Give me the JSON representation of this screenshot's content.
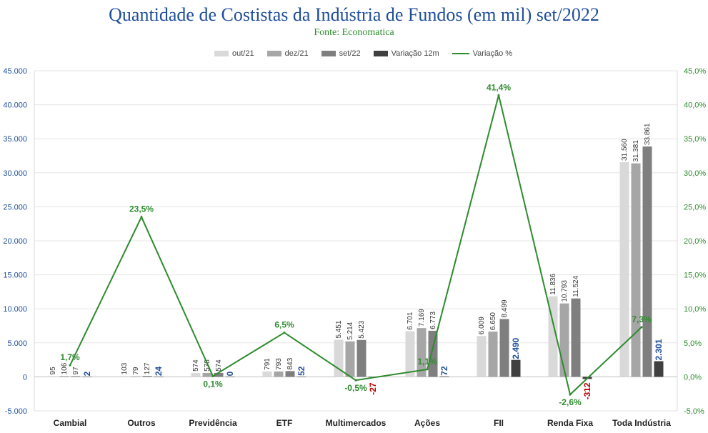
{
  "chart_data": {
    "type": "bar",
    "title": "Quantidade de Costistas da Indústria de Fundos (em mil) set/2022",
    "subtitle": "Fonte: Economatica",
    "categories": [
      "Cambial",
      "Outros",
      "Previdência",
      "ETF",
      "Multimercados",
      "Ações",
      "FII",
      "Renda Fixa",
      "Toda Indústria"
    ],
    "series": [
      {
        "name": "out/21",
        "type": "bar",
        "color": "#d9d9d9",
        "values": [
          95,
          103,
          574,
          791,
          5451,
          6701,
          6009,
          11836,
          31560
        ],
        "labels": [
          "95",
          "103",
          "574",
          "791",
          "5.451",
          "6.701",
          "6.009",
          "11.836",
          "31.560"
        ]
      },
      {
        "name": "dez/21",
        "type": "bar",
        "color": "#a6a6a6",
        "values": [
          106,
          79,
          578,
          793,
          5214,
          7169,
          6650,
          10793,
          31381
        ],
        "labels": [
          "106",
          "79",
          "578",
          "793",
          "5.214",
          "7.169",
          "6.650",
          "10.793",
          "31.381"
        ]
      },
      {
        "name": "set/22",
        "type": "bar",
        "color": "#7f7f7f",
        "values": [
          97,
          127,
          574,
          843,
          5423,
          6773,
          8499,
          11524,
          33861
        ],
        "labels": [
          "97",
          "127",
          "574",
          "843",
          "5.423",
          "6.773",
          "8.499",
          "11.524",
          "33.861"
        ]
      },
      {
        "name": "Variação 12m",
        "type": "bar",
        "color": "#404040",
        "values": [
          2,
          24,
          0,
          52,
          -27,
          72,
          2490,
          -312,
          2301
        ],
        "labels": [
          "2",
          "24",
          "0",
          "52",
          "-27",
          "72",
          "2.490",
          "-312",
          "2.301"
        ]
      },
      {
        "name": "Variação %",
        "type": "line",
        "axis": "right",
        "color": "#2e8b2e",
        "values": [
          1.7,
          23.5,
          0.1,
          6.5,
          -0.5,
          1.1,
          41.4,
          -2.6,
          7.3
        ],
        "labels": [
          "1,7%",
          "23,5%",
          "0,1%",
          "6,5%",
          "-0,5%",
          "1,1%",
          "41,4%",
          "-2,6%",
          "7,3%"
        ]
      }
    ],
    "y_left": {
      "min": -5000,
      "max": 45000,
      "ticks": [
        "-5.000",
        "0",
        "5.000",
        "10.000",
        "15.000",
        "20.000",
        "25.000",
        "30.000",
        "35.000",
        "40.000",
        "45.000"
      ]
    },
    "y_right": {
      "min": -5,
      "max": 45,
      "ticks": [
        "-5,0%",
        "0,0%",
        "5,0%",
        "10,0%",
        "15,0%",
        "20,0%",
        "25,0%",
        "30,0%",
        "35,0%",
        "40,0%",
        "45,0%"
      ]
    },
    "grid": true,
    "legend_position": "top",
    "colors": {
      "left_axis": "#1f4e9a",
      "right_axis": "#2e8b2e",
      "positive_variation": "#1f4e9a",
      "negative_variation": "#c00000",
      "line": "#2e8b2e"
    }
  }
}
